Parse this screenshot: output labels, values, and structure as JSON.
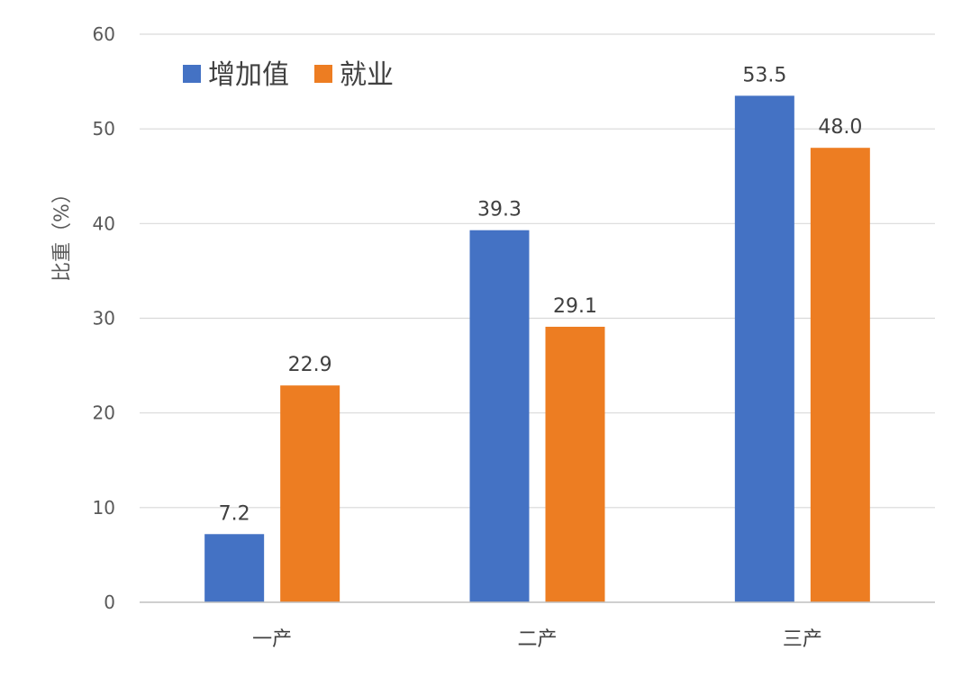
{
  "chart_data": {
    "type": "bar",
    "title": "",
    "xlabel": "",
    "ylabel": "比重（%）",
    "ylim": [
      0,
      60
    ],
    "yticks": [
      0,
      10,
      20,
      30,
      40,
      50,
      60
    ],
    "grid": true,
    "legend_position": "top-left",
    "categories": [
      "一产",
      "二产",
      "三产"
    ],
    "series": [
      {
        "name": "增加值",
        "color": "#4472C4",
        "values": [
          7.2,
          39.3,
          53.5
        ]
      },
      {
        "name": "就业",
        "color": "#ED7D22",
        "values": [
          22.9,
          29.1,
          48.0
        ]
      }
    ]
  }
}
